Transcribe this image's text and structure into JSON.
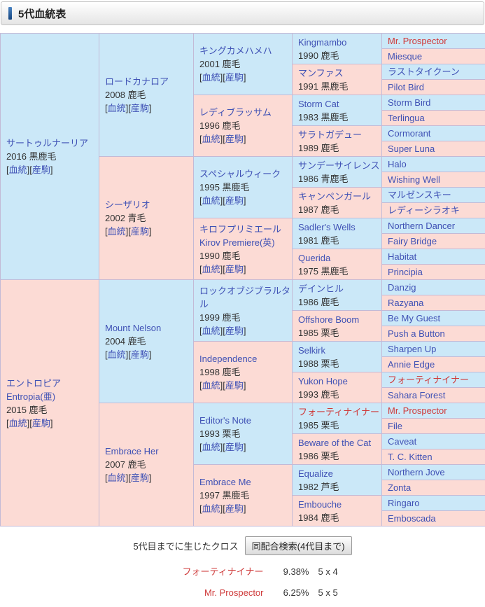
{
  "header": {
    "title": "5代血統表"
  },
  "colors": {
    "male_cell_bg": "#cbe8f8",
    "female_cell_bg": "#fcdbd5",
    "link_text": "#3f51b5",
    "cross_highlight_text": "#cf3a3a",
    "grid_line": "#c3bad6"
  },
  "pedigree": {
    "link_labels": {
      "blood": "血統",
      "offspring": "産駒"
    },
    "generations": [
      {
        "span": 16,
        "cells": [
          {
            "name": "サートゥルナーリア",
            "detail": "2016 黒鹿毛",
            "sex": "male",
            "links": true,
            "highlight": false
          },
          {
            "name": "エントロピア",
            "name2": "Entropia(亜)",
            "detail": "2015 鹿毛",
            "sex": "female",
            "links": true,
            "highlight": false
          }
        ]
      },
      {
        "span": 8,
        "cells": [
          {
            "name": "ロードカナロア",
            "detail": "2008 鹿毛",
            "sex": "male",
            "links": true,
            "highlight": false
          },
          {
            "name": "シーザリオ",
            "detail": "2002 青毛",
            "sex": "female",
            "links": true,
            "highlight": false
          },
          {
            "name": "Mount Nelson",
            "detail": "2004 鹿毛",
            "sex": "male",
            "links": true,
            "highlight": false
          },
          {
            "name": "Embrace Her",
            "detail": "2007 鹿毛",
            "sex": "female",
            "links": true,
            "highlight": false
          }
        ]
      },
      {
        "span": 4,
        "cells": [
          {
            "name": "キングカメハメハ",
            "detail": "2001 鹿毛",
            "sex": "male",
            "links": true,
            "highlight": false
          },
          {
            "name": "レディブラッサム",
            "detail": "1996 鹿毛",
            "sex": "female",
            "links": true,
            "highlight": false
          },
          {
            "name": "スペシャルウィーク",
            "detail": "1995 黒鹿毛",
            "sex": "male",
            "links": true,
            "highlight": false
          },
          {
            "name": "キロフプリミエール",
            "name2": "Kirov Premiere(英)",
            "detail": "1990 鹿毛",
            "sex": "female",
            "links": true,
            "highlight": false
          },
          {
            "name": "ロックオブジブラルタル",
            "detail": "1999 鹿毛",
            "sex": "male",
            "links": true,
            "highlight": false
          },
          {
            "name": "Independence",
            "detail": "1998 鹿毛",
            "sex": "female",
            "links": true,
            "highlight": false
          },
          {
            "name": "Editor's Note",
            "detail": "1993 栗毛",
            "sex": "male",
            "links": true,
            "highlight": false
          },
          {
            "name": "Embrace Me",
            "detail": "1997 黒鹿毛",
            "sex": "female",
            "links": true,
            "highlight": false
          }
        ]
      },
      {
        "span": 2,
        "cells": [
          {
            "name": "Kingmambo",
            "detail": "1990 鹿毛",
            "sex": "male",
            "links": false,
            "highlight": false
          },
          {
            "name": "マンファス",
            "detail": "1991 黒鹿毛",
            "sex": "female",
            "links": false,
            "highlight": false
          },
          {
            "name": "Storm Cat",
            "detail": "1983 黒鹿毛",
            "sex": "male",
            "links": false,
            "highlight": false
          },
          {
            "name": "サラトガデュー",
            "detail": "1989 鹿毛",
            "sex": "female",
            "links": false,
            "highlight": false
          },
          {
            "name": "サンデーサイレンス",
            "detail": "1986 青鹿毛",
            "sex": "male",
            "links": false,
            "highlight": false
          },
          {
            "name": "キャンペンガール",
            "detail": "1987 鹿毛",
            "sex": "female",
            "links": false,
            "highlight": false
          },
          {
            "name": "Sadler's Wells",
            "detail": "1981 鹿毛",
            "sex": "male",
            "links": false,
            "highlight": false
          },
          {
            "name": "Querida",
            "detail": "1975 黒鹿毛",
            "sex": "female",
            "links": false,
            "highlight": false
          },
          {
            "name": "デインヒル",
            "detail": "1986 鹿毛",
            "sex": "male",
            "links": false,
            "highlight": false
          },
          {
            "name": "Offshore Boom",
            "detail": "1985 栗毛",
            "sex": "female",
            "links": false,
            "highlight": false
          },
          {
            "name": "Selkirk",
            "detail": "1988 栗毛",
            "sex": "male",
            "links": false,
            "highlight": false
          },
          {
            "name": "Yukon Hope",
            "detail": "1993 鹿毛",
            "sex": "female",
            "links": false,
            "highlight": false
          },
          {
            "name": "フォーティナイナー",
            "detail": "1985 栗毛",
            "sex": "male",
            "links": false,
            "highlight": true
          },
          {
            "name": "Beware of the Cat",
            "detail": "1986 栗毛",
            "sex": "female",
            "links": false,
            "highlight": false
          },
          {
            "name": "Equalize",
            "detail": "1982 芦毛",
            "sex": "male",
            "links": false,
            "highlight": false
          },
          {
            "name": "Embouche",
            "detail": "1984 鹿毛",
            "sex": "female",
            "links": false,
            "highlight": false
          }
        ]
      },
      {
        "span": 1,
        "cells": [
          {
            "name": "Mr. Prospector",
            "sex": "male",
            "links": false,
            "highlight": true
          },
          {
            "name": "Miesque",
            "sex": "female",
            "links": false,
            "highlight": false
          },
          {
            "name": "ラストタイクーン",
            "sex": "male",
            "links": false,
            "highlight": false
          },
          {
            "name": "Pilot Bird",
            "sex": "female",
            "links": false,
            "highlight": false
          },
          {
            "name": "Storm Bird",
            "sex": "male",
            "links": false,
            "highlight": false
          },
          {
            "name": "Terlingua",
            "sex": "female",
            "links": false,
            "highlight": false
          },
          {
            "name": "Cormorant",
            "sex": "male",
            "links": false,
            "highlight": false
          },
          {
            "name": "Super Luna",
            "sex": "female",
            "links": false,
            "highlight": false
          },
          {
            "name": "Halo",
            "sex": "male",
            "links": false,
            "highlight": false
          },
          {
            "name": "Wishing Well",
            "sex": "female",
            "links": false,
            "highlight": false
          },
          {
            "name": "マルゼンスキー",
            "sex": "male",
            "links": false,
            "highlight": false
          },
          {
            "name": "レディーシラオキ",
            "sex": "female",
            "links": false,
            "highlight": false
          },
          {
            "name": "Northern Dancer",
            "sex": "male",
            "links": false,
            "highlight": false
          },
          {
            "name": "Fairy Bridge",
            "sex": "female",
            "links": false,
            "highlight": false
          },
          {
            "name": "Habitat",
            "sex": "male",
            "links": false,
            "highlight": false
          },
          {
            "name": "Principia",
            "sex": "female",
            "links": false,
            "highlight": false
          },
          {
            "name": "Danzig",
            "sex": "male",
            "links": false,
            "highlight": false
          },
          {
            "name": "Razyana",
            "sex": "female",
            "links": false,
            "highlight": false
          },
          {
            "name": "Be My Guest",
            "sex": "male",
            "links": false,
            "highlight": false
          },
          {
            "name": "Push a Button",
            "sex": "female",
            "links": false,
            "highlight": false
          },
          {
            "name": "Sharpen Up",
            "sex": "male",
            "links": false,
            "highlight": false
          },
          {
            "name": "Annie Edge",
            "sex": "female",
            "links": false,
            "highlight": false
          },
          {
            "name": "フォーティナイナー",
            "sex": "male",
            "links": false,
            "highlight": true
          },
          {
            "name": "Sahara Forest",
            "sex": "female",
            "links": false,
            "highlight": false
          },
          {
            "name": "Mr. Prospector",
            "sex": "male",
            "links": false,
            "highlight": true
          },
          {
            "name": "File",
            "sex": "female",
            "links": false,
            "highlight": false
          },
          {
            "name": "Caveat",
            "sex": "male",
            "links": false,
            "highlight": false
          },
          {
            "name": "T. C. Kitten",
            "sex": "female",
            "links": false,
            "highlight": false
          },
          {
            "name": "Northern Jove",
            "sex": "male",
            "links": false,
            "highlight": false
          },
          {
            "name": "Zonta",
            "sex": "female",
            "links": false,
            "highlight": false
          },
          {
            "name": "Ringaro",
            "sex": "male",
            "links": false,
            "highlight": false
          },
          {
            "name": "Emboscada",
            "sex": "female",
            "links": false,
            "highlight": false
          }
        ]
      }
    ]
  },
  "cross": {
    "label": "5代目までに生じたクロス",
    "button_label": "同配合検索(4代目まで)",
    "items": [
      {
        "name": "フォーティナイナー",
        "percent": "9.38%",
        "pattern": "5 x 4"
      },
      {
        "name": "Mr. Prospector",
        "percent": "6.25%",
        "pattern": "5 x 5"
      }
    ]
  }
}
